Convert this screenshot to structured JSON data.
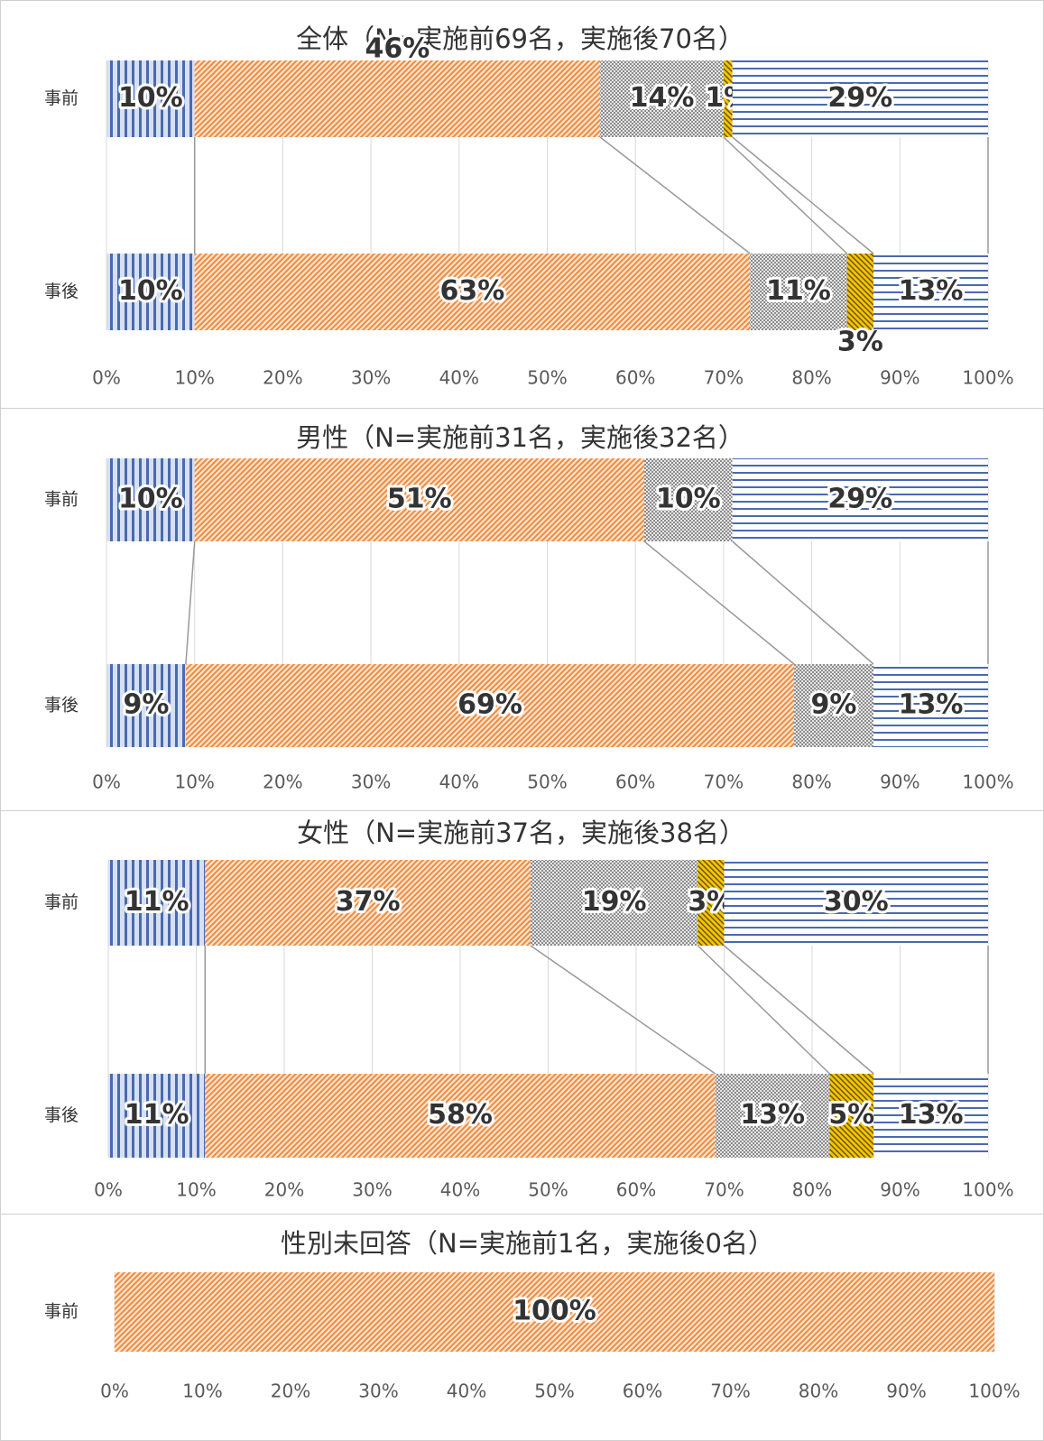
{
  "chart_data": [
    {
      "type": "stacked-bar-horizontal",
      "title": "全体（N=実施前69名，実施後70名）",
      "categories": [
        "事前",
        "事後"
      ],
      "series": [
        {
          "color": "#4a6ab0",
          "pattern": "vertical",
          "values": [
            10,
            10
          ],
          "value_labels": [
            "10%",
            "10%"
          ]
        },
        {
          "color": "#f08a3c",
          "pattern": "diagonal",
          "values": [
            46,
            63
          ],
          "value_labels": [
            "46%",
            "63%"
          ]
        },
        {
          "color": "#8c8c8c",
          "pattern": "checker",
          "values": [
            14,
            11
          ],
          "value_labels": [
            "14%",
            "11%"
          ]
        },
        {
          "color": "#f5c400",
          "pattern": "diagonal-dark",
          "values": [
            1,
            3
          ],
          "value_labels": [
            "1%",
            "3%"
          ]
        },
        {
          "color": "#4a6ab0",
          "pattern": "horizontal",
          "values": [
            29,
            13
          ],
          "value_labels": [
            "29%",
            "13%"
          ]
        }
      ],
      "xlim": [
        0,
        100
      ],
      "grid": true,
      "xticks": [
        {
          "value": 0,
          "label": "0%"
        },
        {
          "value": 10,
          "label": "10%"
        },
        {
          "value": 20,
          "label": "20%"
        },
        {
          "value": 30,
          "label": "30%"
        },
        {
          "value": 40,
          "label": "40%"
        },
        {
          "value": 50,
          "label": "50%"
        },
        {
          "value": 60,
          "label": "60%"
        },
        {
          "value": 70,
          "label": "70%"
        },
        {
          "value": 80,
          "label": "80%"
        },
        {
          "value": 90,
          "label": "90%"
        },
        {
          "value": 100,
          "label": "100%"
        }
      ]
    },
    {
      "type": "stacked-bar-horizontal",
      "title": "男性（N=実施前31名，実施後32名）",
      "categories": [
        "事前",
        "事後"
      ],
      "series": [
        {
          "color": "#4a6ab0",
          "pattern": "vertical",
          "values": [
            10,
            9
          ],
          "value_labels": [
            "10%",
            "9%"
          ]
        },
        {
          "color": "#f08a3c",
          "pattern": "diagonal",
          "values": [
            51,
            69
          ],
          "value_labels": [
            "51%",
            "69%"
          ]
        },
        {
          "color": "#8c8c8c",
          "pattern": "checker",
          "values": [
            10,
            9
          ],
          "value_labels": [
            "10%",
            "9%"
          ]
        },
        {
          "color": "#f5c400",
          "pattern": "diagonal-dark",
          "values": [
            null,
            null
          ],
          "value_labels": [
            null,
            null
          ]
        },
        {
          "color": "#4a6ab0",
          "pattern": "horizontal",
          "values": [
            29,
            13
          ],
          "value_labels": [
            "29%",
            "13%"
          ]
        }
      ],
      "xlim": [
        0,
        100
      ],
      "grid": true,
      "xticks": [
        {
          "value": 0,
          "label": "0%"
        },
        {
          "value": 10,
          "label": "10%"
        },
        {
          "value": 20,
          "label": "20%"
        },
        {
          "value": 30,
          "label": "30%"
        },
        {
          "value": 40,
          "label": "40%"
        },
        {
          "value": 50,
          "label": "50%"
        },
        {
          "value": 60,
          "label": "60%"
        },
        {
          "value": 70,
          "label": "70%"
        },
        {
          "value": 80,
          "label": "80%"
        },
        {
          "value": 90,
          "label": "90%"
        },
        {
          "value": 100,
          "label": "100%"
        }
      ]
    },
    {
      "type": "stacked-bar-horizontal",
      "title": "女性（N=実施前37名，実施後38名）",
      "categories": [
        "事前",
        "事後"
      ],
      "series": [
        {
          "color": "#4a6ab0",
          "pattern": "vertical",
          "values": [
            11,
            11
          ],
          "value_labels": [
            "11%",
            "11%"
          ]
        },
        {
          "color": "#f08a3c",
          "pattern": "diagonal",
          "values": [
            37,
            58
          ],
          "value_labels": [
            "37%",
            "58%"
          ]
        },
        {
          "color": "#8c8c8c",
          "pattern": "checker",
          "values": [
            19,
            13
          ],
          "value_labels": [
            "19%",
            "13%"
          ]
        },
        {
          "color": "#f5c400",
          "pattern": "diagonal-dark",
          "values": [
            3,
            5
          ],
          "value_labels": [
            "3%",
            "5%"
          ]
        },
        {
          "color": "#4a6ab0",
          "pattern": "horizontal",
          "values": [
            30,
            13
          ],
          "value_labels": [
            "30%",
            "13%"
          ]
        }
      ],
      "xlim": [
        0,
        100
      ],
      "grid": true,
      "xticks": [
        {
          "value": 0,
          "label": "0%"
        },
        {
          "value": 10,
          "label": "10%"
        },
        {
          "value": 20,
          "label": "20%"
        },
        {
          "value": 30,
          "label": "30%"
        },
        {
          "value": 40,
          "label": "40%"
        },
        {
          "value": 50,
          "label": "50%"
        },
        {
          "value": 60,
          "label": "60%"
        },
        {
          "value": 70,
          "label": "70%"
        },
        {
          "value": 80,
          "label": "80%"
        },
        {
          "value": 90,
          "label": "90%"
        },
        {
          "value": 100,
          "label": "100%"
        }
      ]
    },
    {
      "type": "stacked-bar-horizontal",
      "title": "性別未回答（N=実施前1名，実施後0名）",
      "categories": [
        "事前"
      ],
      "series": [
        {
          "color": "#4a6ab0",
          "pattern": "vertical",
          "values": [
            null
          ],
          "value_labels": [
            null
          ]
        },
        {
          "color": "#f08a3c",
          "pattern": "diagonal",
          "values": [
            100
          ],
          "value_labels": [
            "100%"
          ]
        },
        {
          "color": "#8c8c8c",
          "pattern": "checker",
          "values": [
            null
          ],
          "value_labels": [
            null
          ]
        },
        {
          "color": "#f5c400",
          "pattern": "diagonal-dark",
          "values": [
            null
          ],
          "value_labels": [
            null
          ]
        },
        {
          "color": "#4a6ab0",
          "pattern": "horizontal",
          "values": [
            null
          ],
          "value_labels": [
            null
          ]
        }
      ],
      "xlim": [
        0,
        100
      ],
      "grid": true,
      "xticks": [
        {
          "value": 0,
          "label": "0%"
        },
        {
          "value": 10,
          "label": "10%"
        },
        {
          "value": 20,
          "label": "20%"
        },
        {
          "value": 30,
          "label": "30%"
        },
        {
          "value": 40,
          "label": "40%"
        },
        {
          "value": 50,
          "label": "50%"
        },
        {
          "value": 60,
          "label": "60%"
        },
        {
          "value": 70,
          "label": "70%"
        },
        {
          "value": 80,
          "label": "80%"
        },
        {
          "value": 90,
          "label": "90%"
        },
        {
          "value": 100,
          "label": "100%"
        }
      ]
    }
  ]
}
